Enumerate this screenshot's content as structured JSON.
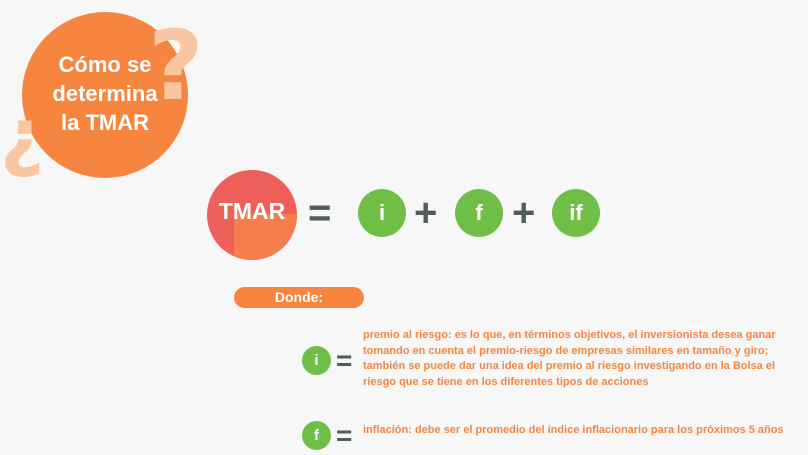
{
  "title": {
    "line1": "Cómo se",
    "line2": "determina",
    "line3": "la TMAR"
  },
  "decor": {
    "question_open": "¿",
    "question_close": "?"
  },
  "formula": {
    "lhs": "TMAR",
    "equals": "=",
    "term1": "i",
    "plus1": "+",
    "term2": "f",
    "plus2": "+",
    "term3": "if"
  },
  "donde_label": "Donde:",
  "definitions": [
    {
      "symbol": "i",
      "equals": "=",
      "text": "premio al riesgo: es lo que, en términos objetivos, el inversionista desea ganar tomando en cuenta el premio-riesgo de empresas similares en tamaño y giro; también se puede dar una idea del premio al riesgo investigando en la Bolsa el riesgo que se tiene en los diferentes tipos de acciones"
    },
    {
      "symbol": "f",
      "equals": "=",
      "text": "inflación: debe ser el promedio del índice inflacionario para los próximos 5 años"
    }
  ],
  "colors": {
    "orange": "#f6853f",
    "green": "#6fbe45",
    "dark": "#4f5d5b",
    "red": "#f0605a",
    "pale_orange": "#f9c6a2"
  }
}
